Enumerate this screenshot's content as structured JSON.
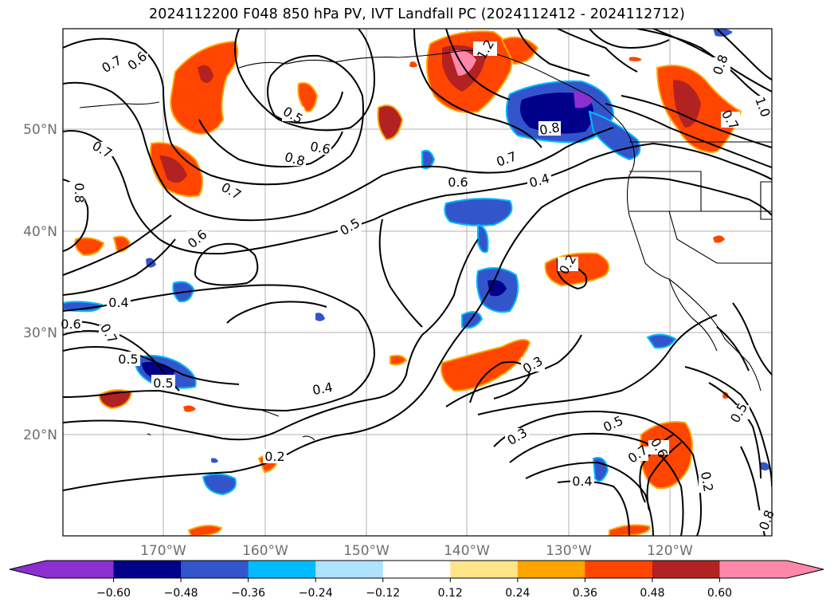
{
  "title": "2024112200 F048 850 hPa PV, IVT Landfall PC (2024112412 - 2024112712)",
  "map": {
    "lat_labels": [
      "50°N",
      "40°N",
      "30°N",
      "20°N"
    ],
    "lon_labels": [
      "170°W",
      "160°W",
      "150°W",
      "140°W",
      "130°W",
      "120°W"
    ],
    "contour_labels": [
      "0.7",
      "0.6",
      "0.5",
      "0.8",
      "0.6",
      "0.7",
      "1.2",
      "0.8",
      "0.7",
      "0.6",
      "0.4",
      "0.6",
      "0.5",
      "0.8",
      "0.7",
      "0.8",
      "0.4",
      "0.6",
      "0.7",
      "0.5",
      "0.5",
      "0.2",
      "0.3",
      "0.4",
      "0.3",
      "0.5",
      "0.7",
      "0.6",
      "0.4",
      "0.2",
      "0.2",
      "0.5",
      "0.8",
      "0.7",
      "1.0"
    ]
  },
  "colorbar": {
    "ticks": [
      "−0.60",
      "−0.48",
      "−0.36",
      "−0.24",
      "−0.12",
      "0.12",
      "0.24",
      "0.36",
      "0.48",
      "0.60"
    ],
    "colors": [
      "#8b2fd1",
      "#00008b",
      "#3355cc",
      "#00bbff",
      "#aee3ff",
      "#ffffff",
      "#ffe58a",
      "#ffa500",
      "#ff4500",
      "#b22222",
      "#ff88aa"
    ]
  }
}
